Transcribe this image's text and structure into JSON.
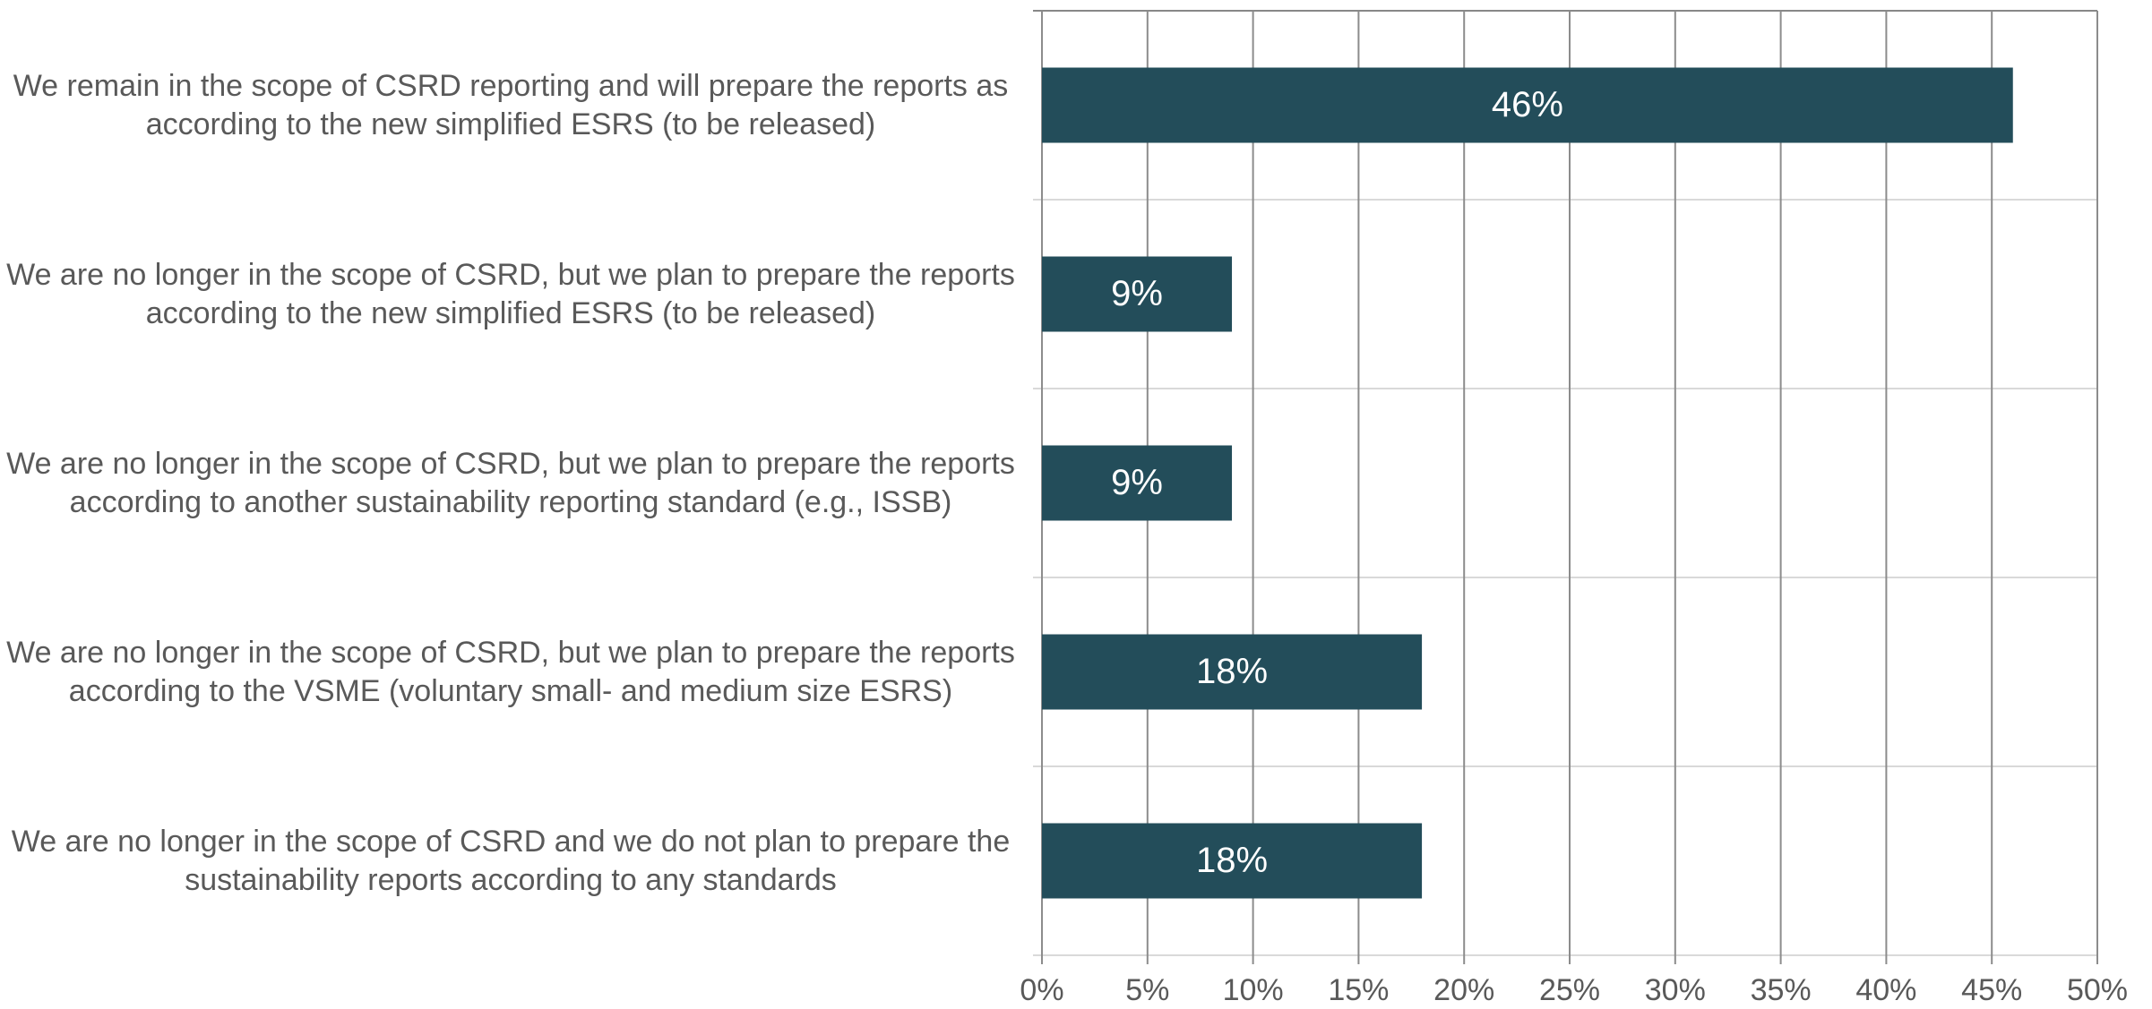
{
  "chart_data": {
    "type": "barh",
    "categories": [
      "We remain in the scope of CSRD reporting and will prepare the reports as according to the new simplified ESRS (to be released)",
      "We are no longer in the scope of CSRD, but we plan to prepare the reports according to the new simplified ESRS (to be released)",
      "We are no longer in the scope of CSRD, but we plan to prepare the reports according to another sustainability reporting standard (e.g., ISSB)",
      "We are no longer in the scope of CSRD, but we plan to prepare the reports according to the VSME (voluntary small- and medium size ESRS)",
      "We are no longer in the scope of CSRD and we do not plan to prepare the sustainability reports according to any standards"
    ],
    "values": [
      46,
      9,
      9,
      18,
      18
    ],
    "value_labels": [
      "46%",
      "9%",
      "9%",
      "18%",
      "18%"
    ],
    "color": "#234d5a",
    "xlim": [
      0,
      50
    ],
    "xticks": [
      {
        "value": 0,
        "label": "0%"
      },
      {
        "value": 5,
        "label": "5%"
      },
      {
        "value": 10,
        "label": "10%"
      },
      {
        "value": 15,
        "label": "15%"
      },
      {
        "value": 20,
        "label": "20%"
      },
      {
        "value": 25,
        "label": "25%"
      },
      {
        "value": 30,
        "label": "30%"
      },
      {
        "value": 35,
        "label": "35%"
      },
      {
        "value": 40,
        "label": "40%"
      },
      {
        "value": 45,
        "label": "45%"
      },
      {
        "value": 50,
        "label": "50%"
      }
    ],
    "grid": true
  }
}
